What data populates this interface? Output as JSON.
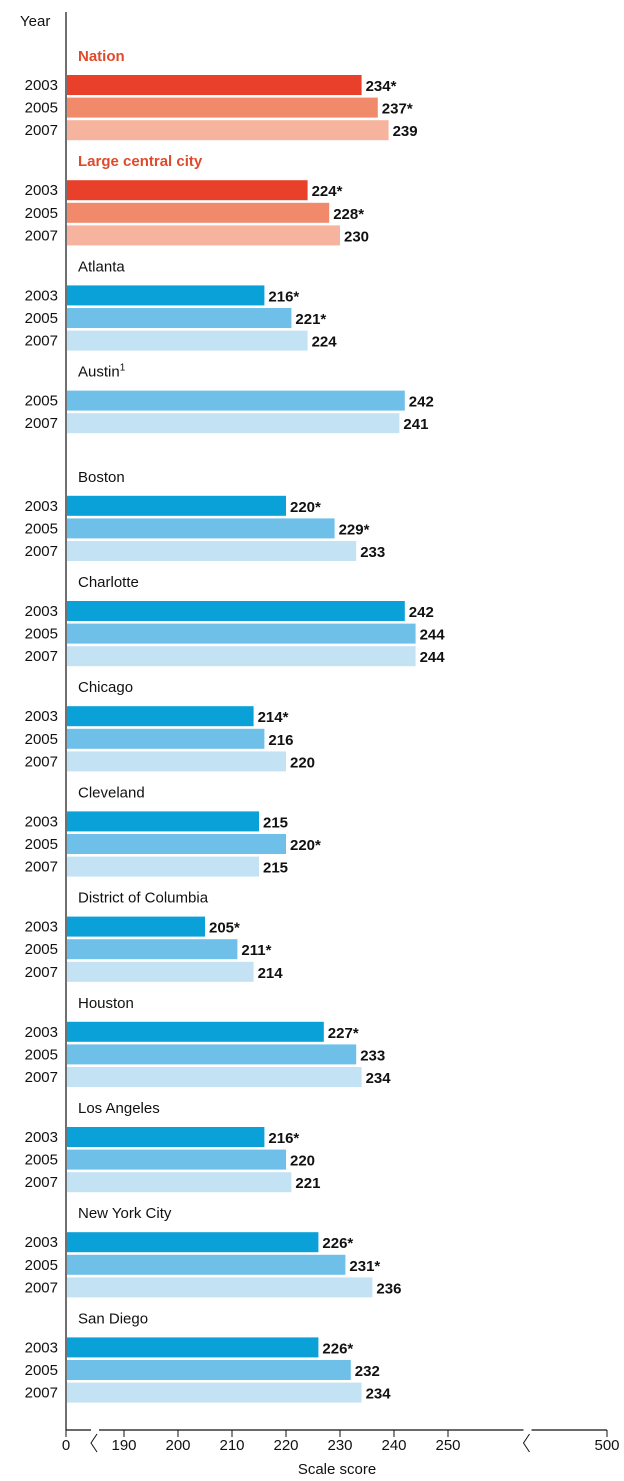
{
  "chart_data": {
    "type": "bar",
    "orientation": "horizontal",
    "y_label": "Year",
    "x_label": "Scale score",
    "xlim": [
      0,
      500
    ],
    "xticks": [
      0,
      190,
      200,
      210,
      220,
      230,
      240,
      250,
      500
    ],
    "axis_breaks": [
      [
        0,
        190
      ],
      [
        250,
        500
      ]
    ],
    "colors": {
      "2003": "#0aa0d8",
      "2005": "#6fc0e8",
      "2007": "#c3e3f5"
    },
    "highlight_colors": {
      "2003": "#e8402a",
      "2005": "#f08a6a",
      "2007": "#f6b49e"
    },
    "groups": [
      {
        "name": "Nation",
        "highlight": true,
        "years": [
          "2003",
          "2005",
          "2007"
        ],
        "values": [
          234,
          237,
          239
        ],
        "value_labels": [
          "234*",
          "237*",
          "239"
        ]
      },
      {
        "name": "Large central city",
        "highlight": true,
        "years": [
          "2003",
          "2005",
          "2007"
        ],
        "values": [
          224,
          228,
          230
        ],
        "value_labels": [
          "224*",
          "228*",
          "230"
        ]
      },
      {
        "name": "Atlanta",
        "years": [
          "2003",
          "2005",
          "2007"
        ],
        "values": [
          216,
          221,
          224
        ],
        "value_labels": [
          "216*",
          "221*",
          "224"
        ]
      },
      {
        "name": "Austin",
        "note": "1",
        "years": [
          "2005",
          "2007"
        ],
        "values": [
          242,
          241
        ],
        "value_labels": [
          "242",
          "241"
        ]
      },
      {
        "name": "Boston",
        "years": [
          "2003",
          "2005",
          "2007"
        ],
        "values": [
          220,
          229,
          233
        ],
        "value_labels": [
          "220*",
          "229*",
          "233"
        ]
      },
      {
        "name": "Charlotte",
        "years": [
          "2003",
          "2005",
          "2007"
        ],
        "values": [
          242,
          244,
          244
        ],
        "value_labels": [
          "242",
          "244",
          "244"
        ]
      },
      {
        "name": "Chicago",
        "years": [
          "2003",
          "2005",
          "2007"
        ],
        "values": [
          214,
          216,
          220
        ],
        "value_labels": [
          "214*",
          "216",
          "220"
        ]
      },
      {
        "name": "Cleveland",
        "years": [
          "2003",
          "2005",
          "2007"
        ],
        "values": [
          215,
          220,
          215
        ],
        "value_labels": [
          "215",
          "220*",
          "215"
        ]
      },
      {
        "name": "District of Columbia",
        "years": [
          "2003",
          "2005",
          "2007"
        ],
        "values": [
          205,
          211,
          214
        ],
        "value_labels": [
          "205*",
          "211*",
          "214"
        ]
      },
      {
        "name": "Houston",
        "years": [
          "2003",
          "2005",
          "2007"
        ],
        "values": [
          227,
          233,
          234
        ],
        "value_labels": [
          "227*",
          "233",
          "234"
        ]
      },
      {
        "name": "Los Angeles",
        "years": [
          "2003",
          "2005",
          "2007"
        ],
        "values": [
          216,
          220,
          221
        ],
        "value_labels": [
          "216*",
          "220",
          "221"
        ]
      },
      {
        "name": "New York City",
        "years": [
          "2003",
          "2005",
          "2007"
        ],
        "values": [
          226,
          231,
          236
        ],
        "value_labels": [
          "226*",
          "231*",
          "236"
        ]
      },
      {
        "name": "San Diego",
        "years": [
          "2003",
          "2005",
          "2007"
        ],
        "values": [
          226,
          232,
          234
        ],
        "value_labels": [
          "226*",
          "232",
          "234"
        ]
      }
    ]
  }
}
